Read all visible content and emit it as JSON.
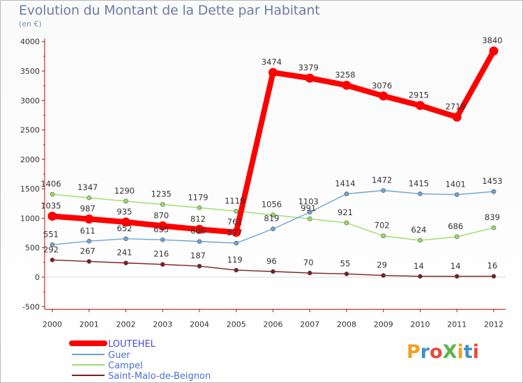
{
  "title": "Evolution du Montant de la Dette par Habitant",
  "unit": "(en €)",
  "logo": "ProXiti",
  "logo_colors": [
    "#f0a020",
    "#3f8fd6",
    "#e94a3a",
    "#5bb34a",
    "#f0a020",
    "#3f8fd6",
    "#e94a3a"
  ],
  "chart_data": {
    "type": "line",
    "title": "Evolution du Montant de la Dette par Habitant",
    "ylabel": "(en €)",
    "xlabel": "",
    "x": [
      2000,
      2001,
      2002,
      2003,
      2004,
      2005,
      2006,
      2007,
      2008,
      2009,
      2010,
      2011,
      2012
    ],
    "ylim": [
      -500,
      4000
    ],
    "yticks": [
      -500,
      0,
      500,
      1000,
      1500,
      2000,
      2500,
      3000,
      3500,
      4000
    ],
    "grid": false,
    "legend_position": "bottom-left",
    "series": [
      {
        "name": "LOUTEHEL",
        "color": "#ff0000",
        "values": [
          1035,
          987,
          935,
          870,
          812,
          761,
          3474,
          3379,
          3258,
          3076,
          2915,
          2718,
          3840
        ],
        "labels": [
          "1035",
          "987",
          "935",
          "870",
          "812",
          "761",
          "3474",
          "3379",
          "3258",
          "3076",
          "2915",
          "2718",
          "3840"
        ]
      },
      {
        "name": "Guer",
        "color": "#6fa3d3",
        "values": [
          551,
          611,
          652,
          635,
          606,
          577,
          819,
          1103,
          1414,
          1472,
          1415,
          1401,
          1453
        ],
        "labels": [
          "551",
          "611",
          "652",
          "635",
          "606",
          "577",
          "819",
          "1103",
          "1414",
          "1472",
          "1415",
          "1401",
          "1453"
        ]
      },
      {
        "name": "Campel",
        "color": "#99dd66",
        "values": [
          1406,
          1347,
          1290,
          1235,
          1179,
          1119,
          1056,
          991,
          921,
          702,
          624,
          686,
          839
        ],
        "labels": [
          "1406",
          "1347",
          "1290",
          "1235",
          "1179",
          "1119",
          "1056",
          "991",
          "921",
          "702",
          "624",
          "686",
          "839"
        ]
      },
      {
        "name": "Saint-Malo-de-Beignon",
        "color": "#7a2020",
        "values": [
          292,
          267,
          241,
          216,
          187,
          119,
          96,
          70,
          55,
          29,
          14,
          14,
          16
        ],
        "labels": [
          "292",
          "267",
          "241",
          "216",
          "187",
          "119",
          "96",
          "70",
          "55",
          "29",
          "14",
          "14",
          "16"
        ]
      }
    ]
  }
}
